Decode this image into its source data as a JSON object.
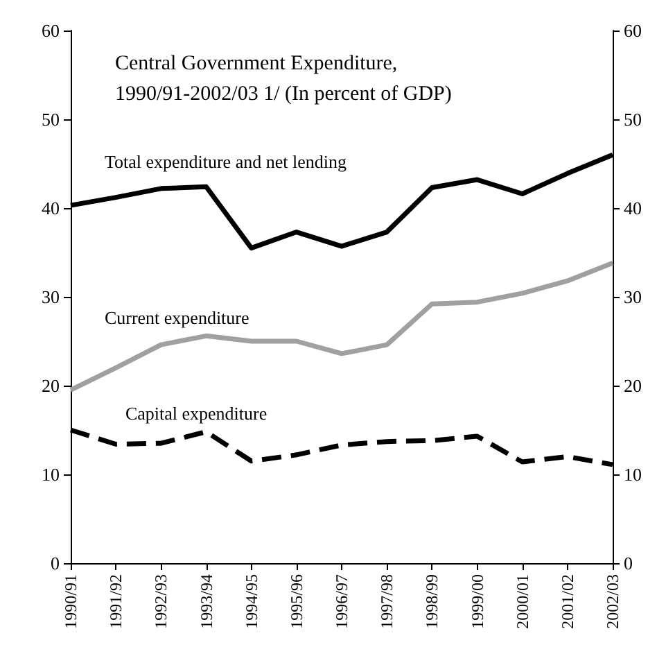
{
  "chart_data": {
    "type": "line",
    "title": "Central Government Expenditure,\n1990/91-2002/03 1/ (In percent of GDP)",
    "categories": [
      "1990/91",
      "1991/92",
      "1992/93",
      "1993/94",
      "1994/95",
      "1995/96",
      "1996/97",
      "1997/98",
      "1998/99",
      "1999/00",
      "2000/01",
      "2001/02",
      "2002/03"
    ],
    "series": [
      {
        "name": "Total expenditure and net lending",
        "color": "#000000",
        "line_style": "solid",
        "values": [
          40.3,
          41.2,
          42.2,
          42.4,
          35.5,
          37.3,
          35.7,
          37.3,
          42.3,
          43.2,
          41.6,
          43.9,
          46.0
        ]
      },
      {
        "name": "Current expenditure",
        "color": "#a0a0a0",
        "line_style": "solid",
        "values": [
          19.5,
          22.0,
          24.6,
          25.6,
          25.0,
          25.0,
          23.6,
          24.6,
          29.2,
          29.4,
          30.4,
          31.8,
          33.8
        ]
      },
      {
        "name": "Capital expenditure",
        "color": "#000000",
        "line_style": "dashed",
        "values": [
          15.0,
          13.4,
          13.5,
          14.8,
          11.5,
          12.2,
          13.3,
          13.7,
          13.8,
          14.3,
          11.4,
          12.0,
          11.1
        ]
      }
    ],
    "ylim": [
      0,
      60
    ],
    "yticks": [
      0,
      10,
      20,
      30,
      40,
      50,
      60
    ],
    "y2lim": [
      0,
      60
    ],
    "y2ticks": [
      0,
      10,
      20,
      30,
      40,
      50,
      60
    ],
    "grid": false,
    "legend": false,
    "marker": "none"
  }
}
